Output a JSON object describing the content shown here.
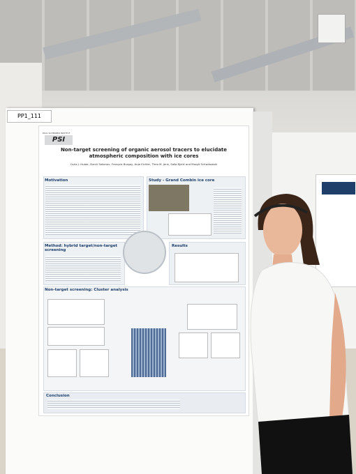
{
  "poster": {
    "board_label": "PP1_111",
    "logo": "PSI",
    "institute": "PAUL SCHERRER INSTITUT",
    "title": "Non-target screening of organic aerosol tracers to elucidate atmospheric composition with ice cores",
    "authors": "Carla J. Huber, Daniil Salionov, François Burgay, Anja Eichler, Theo M. Jenk, Saša Bjelić and Margit Schwikowski",
    "sections": [
      "Motivation",
      "Study - Grand Combin ice core",
      "Method: hybrid target/non-target screening",
      "Results",
      "Non-target screening: Cluster analysis",
      "Conclusion"
    ]
  }
}
